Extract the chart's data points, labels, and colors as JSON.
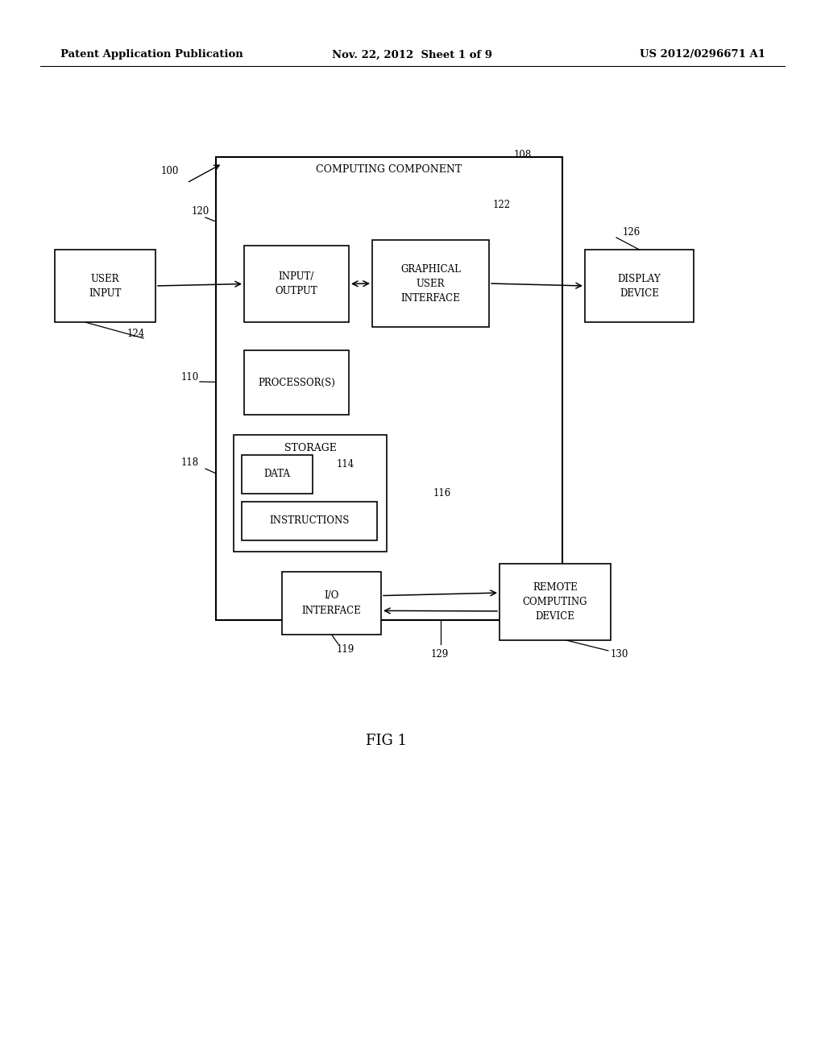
{
  "bg_color": "#ffffff",
  "header_left": "Patent Application Publication",
  "header_mid": "Nov. 22, 2012  Sheet 1 of 9",
  "header_right": "US 2012/0296671 A1",
  "fig_label": "FIG 1"
}
